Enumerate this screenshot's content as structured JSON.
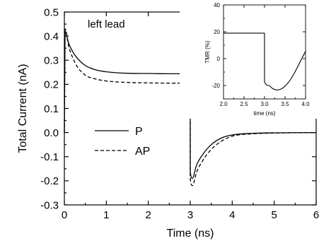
{
  "chart_data": [
    {
      "type": "line",
      "title": "",
      "annotation": "left lead",
      "xlabel": "Time (ns)",
      "ylabel": "Total Current (nA)",
      "xlim": [
        0,
        6
      ],
      "ylim": [
        -0.3,
        0.5
      ],
      "xticks": [
        0,
        1,
        2,
        3,
        4,
        5,
        6
      ],
      "yticks": [
        -0.3,
        -0.2,
        -0.1,
        0.0,
        0.1,
        0.2,
        0.3,
        0.4,
        0.5
      ],
      "xtick_labels": [
        "0",
        "1",
        "2",
        "3",
        "4",
        "5",
        "6"
      ],
      "ytick_labels": [
        "-0.3",
        "-0.2",
        "-0.1",
        "0.0",
        "0.1",
        "0.2",
        "0.3",
        "0.4",
        "0.5"
      ],
      "grid": false,
      "legend": "center-left",
      "series": [
        {
          "name": "P",
          "style": "solid",
          "x": [
            0,
            0.02,
            0.1,
            0.2,
            0.3,
            0.5,
            0.75,
            1.0,
            1.5,
            2.0,
            2.5,
            2.999,
            3.0,
            3.05,
            3.15,
            3.3,
            3.5,
            3.75,
            4.0,
            4.5,
            5.0,
            6.0
          ],
          "y": [
            0.0,
            0.42,
            0.372,
            0.335,
            0.31,
            0.278,
            0.26,
            0.252,
            0.246,
            0.245,
            0.244,
            0.244,
            -0.16,
            -0.19,
            -0.135,
            -0.09,
            -0.05,
            -0.022,
            -0.01,
            -0.003,
            -0.001,
            0.0
          ]
        },
        {
          "name": "AP",
          "style": "dashed",
          "x": [
            0,
            0.02,
            0.1,
            0.2,
            0.3,
            0.5,
            0.75,
            1.0,
            1.5,
            2.0,
            2.5,
            2.999,
            3.0,
            3.05,
            3.15,
            3.3,
            3.5,
            3.75,
            4.0,
            4.5,
            5.0,
            6.0
          ],
          "y": [
            0.0,
            0.43,
            0.36,
            0.31,
            0.275,
            0.238,
            0.222,
            0.214,
            0.208,
            0.206,
            0.205,
            0.205,
            -0.19,
            -0.22,
            -0.165,
            -0.115,
            -0.07,
            -0.035,
            -0.015,
            -0.005,
            -0.002,
            0.0
          ]
        }
      ]
    },
    {
      "type": "line",
      "title": "",
      "xlabel": "time (ns)",
      "ylabel": "TMR (%)",
      "xlim": [
        2.0,
        4.0
      ],
      "ylim": [
        -30,
        40
      ],
      "xticks": [
        2.0,
        2.5,
        3.0,
        3.5,
        4.0
      ],
      "yticks": [
        -20,
        0,
        20,
        40
      ],
      "xtick_labels": [
        "2.0",
        "2.5",
        "3.0",
        "3.5",
        "4.0"
      ],
      "ytick_labels": [
        "-20",
        "0",
        "20",
        "40"
      ],
      "grid": false,
      "series": [
        {
          "style": "solid",
          "x": [
            2.0,
            2.999,
            3.0,
            3.1,
            3.2,
            3.3,
            3.4,
            3.5,
            3.6,
            3.7,
            3.8,
            3.9,
            4.0
          ],
          "y": [
            19,
            19,
            -17,
            -20,
            -22.3,
            -23.3,
            -22.7,
            -20.5,
            -17,
            -12.3,
            -6.5,
            -0.5,
            5.5
          ]
        }
      ]
    }
  ]
}
